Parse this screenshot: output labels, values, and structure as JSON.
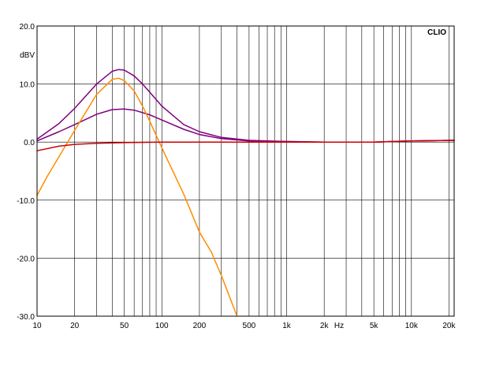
{
  "chart_data": {
    "type": "line",
    "brand_label": "CLIO",
    "ylabel": "dBV",
    "xunit_label": "Hz",
    "xscale": "log",
    "xlim": [
      10,
      22000
    ],
    "ylim": [
      -30,
      20
    ],
    "grid": true,
    "y_ticks": [
      {
        "value": 20,
        "label": "20.0"
      },
      {
        "value": 10,
        "label": "10.0"
      },
      {
        "value": 0,
        "label": "0.0"
      },
      {
        "value": -10,
        "label": "-10.0"
      },
      {
        "value": -20,
        "label": "-20.0"
      },
      {
        "value": -30,
        "label": "-30.0"
      }
    ],
    "x_ticks": [
      {
        "value": 10,
        "label": "10"
      },
      {
        "value": 20,
        "label": "20"
      },
      {
        "value": 50,
        "label": "50"
      },
      {
        "value": 100,
        "label": "100"
      },
      {
        "value": 200,
        "label": "200"
      },
      {
        "value": 500,
        "label": "500"
      },
      {
        "value": 1000,
        "label": "1k"
      },
      {
        "value": 2000,
        "label": "2k"
      },
      {
        "value": 5000,
        "label": "5k"
      },
      {
        "value": 10000,
        "label": "10k"
      },
      {
        "value": 20000,
        "label": "20k"
      }
    ],
    "x_grid": [
      10,
      20,
      30,
      40,
      50,
      60,
      70,
      80,
      90,
      100,
      200,
      300,
      400,
      500,
      600,
      700,
      800,
      900,
      1000,
      2000,
      3000,
      4000,
      5000,
      6000,
      7000,
      8000,
      9000,
      10000,
      20000
    ],
    "y_grid": [
      20,
      10,
      0,
      -10,
      -20,
      -30
    ],
    "series": [
      {
        "color": "#800080",
        "points": [
          [
            10,
            0.5
          ],
          [
            15,
            3.2
          ],
          [
            20,
            5.8
          ],
          [
            30,
            10.0
          ],
          [
            40,
            12.2
          ],
          [
            45,
            12.5
          ],
          [
            50,
            12.4
          ],
          [
            60,
            11.4
          ],
          [
            70,
            10.0
          ],
          [
            80,
            8.6
          ],
          [
            100,
            6.2
          ],
          [
            150,
            3.0
          ],
          [
            200,
            1.8
          ],
          [
            300,
            0.8
          ],
          [
            500,
            0.3
          ],
          [
            1000,
            0.1
          ],
          [
            2000,
            0.0
          ],
          [
            5000,
            0.0
          ],
          [
            10000,
            0.2
          ],
          [
            22000,
            0.3
          ]
        ]
      },
      {
        "color": "#800080",
        "points": [
          [
            10,
            0.2
          ],
          [
            15,
            1.8
          ],
          [
            20,
            3.0
          ],
          [
            30,
            4.8
          ],
          [
            40,
            5.6
          ],
          [
            50,
            5.7
          ],
          [
            60,
            5.5
          ],
          [
            80,
            4.7
          ],
          [
            100,
            3.8
          ],
          [
            150,
            2.2
          ],
          [
            200,
            1.3
          ],
          [
            300,
            0.6
          ],
          [
            500,
            0.2
          ],
          [
            1000,
            0.1
          ],
          [
            2000,
            0.0
          ],
          [
            5000,
            0.0
          ],
          [
            10000,
            0.2
          ],
          [
            22000,
            0.3
          ]
        ]
      },
      {
        "color": "#ff8c00",
        "points": [
          [
            10,
            -9.2
          ],
          [
            12,
            -6.0
          ],
          [
            15,
            -2.5
          ],
          [
            20,
            2.0
          ],
          [
            30,
            8.2
          ],
          [
            40,
            10.8
          ],
          [
            45,
            11.0
          ],
          [
            50,
            10.6
          ],
          [
            60,
            8.8
          ],
          [
            70,
            6.2
          ],
          [
            80,
            3.6
          ],
          [
            100,
            -1.0
          ],
          [
            150,
            -9.0
          ],
          [
            200,
            -15.5
          ],
          [
            250,
            -19.0
          ],
          [
            300,
            -23.0
          ],
          [
            400,
            -30.0
          ]
        ]
      },
      {
        "color": "#cc0000",
        "points": [
          [
            10,
            -1.5
          ],
          [
            15,
            -0.7
          ],
          [
            20,
            -0.4
          ],
          [
            30,
            -0.2
          ],
          [
            50,
            -0.1
          ],
          [
            100,
            0.0
          ],
          [
            1000,
            0.0
          ],
          [
            5000,
            0.0
          ],
          [
            10000,
            0.2
          ],
          [
            22000,
            0.3
          ]
        ]
      }
    ]
  }
}
